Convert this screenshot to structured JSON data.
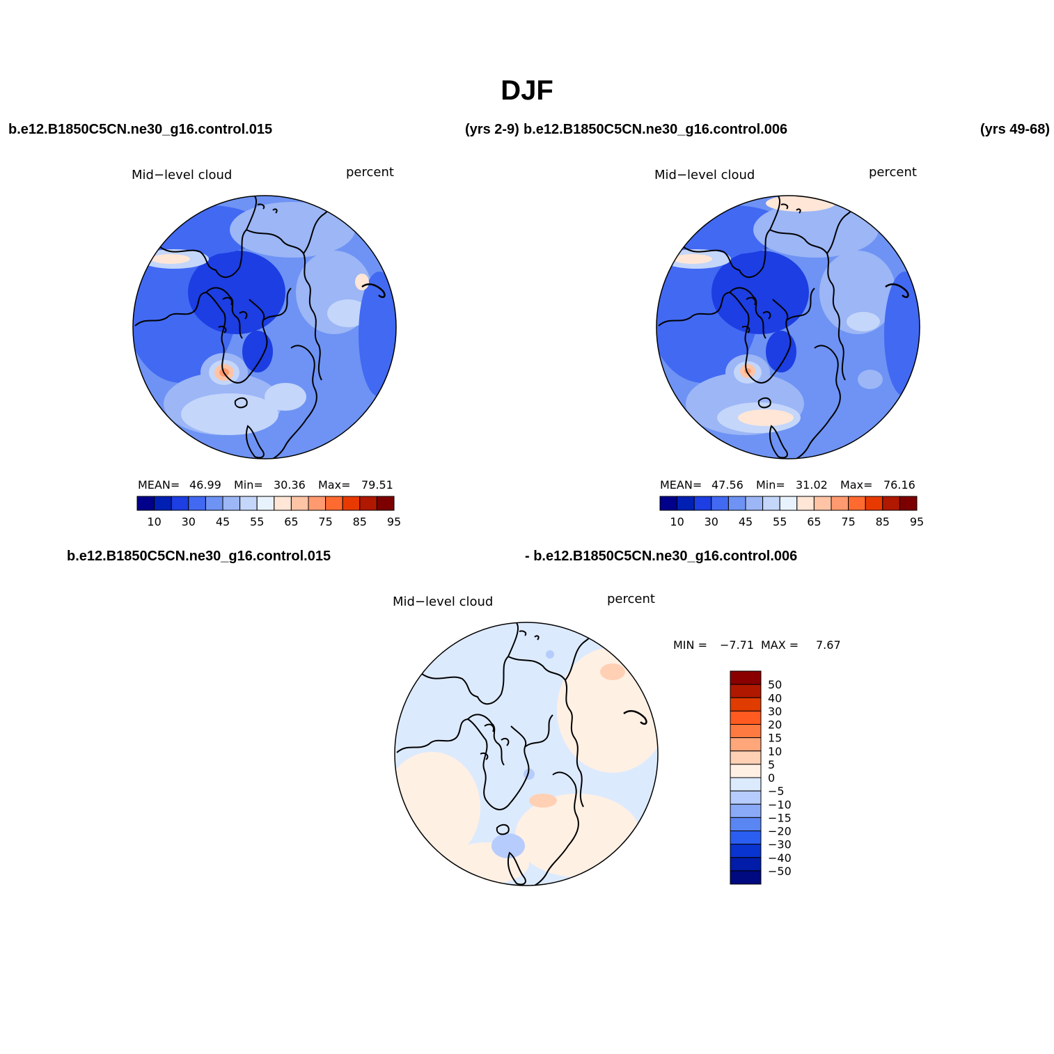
{
  "figure": {
    "title": "DJF",
    "case1_label": "b.e12.B1850C5CN.ne30_g16.control.015",
    "case1_years": "(yrs 2-9)",
    "case2_label": "b.e12.B1850C5CN.ne30_g16.control.006",
    "case2_years": "(yrs 49-68)",
    "diff_label_left": "b.e12.B1850C5CN.ne30_g16.control.015",
    "diff_label_right": "- b.e12.B1850C5CN.ne30_g16.control.006"
  },
  "panels": {
    "p1": {
      "variable": "Mid−level cloud",
      "units": "percent",
      "mean_label": "MEAN=",
      "mean": "46.99",
      "min_label": "Min=",
      "min": "30.36",
      "max_label": "Max=",
      "max": "79.51"
    },
    "p2": {
      "variable": "Mid−level cloud",
      "units": "percent",
      "mean_label": "MEAN=",
      "mean": "47.56",
      "min_label": "Min=",
      "min": "31.02",
      "max_label": "Max=",
      "max": "76.16"
    },
    "p3": {
      "variable": "Mid−level cloud",
      "units": "percent",
      "min_label": "MIN =",
      "min": "−7.71",
      "max_label": "MAX =",
      "max": "7.67"
    }
  },
  "chart_data": [
    {
      "type": "heatmap",
      "projection": "north-polar-stereographic",
      "title": "Mid-level cloud",
      "units": "percent",
      "case": "b.e12.B1850C5CN.ne30_g16.control.015",
      "years": "(yrs 2-9)",
      "mean": 46.99,
      "min": 30.36,
      "max": 79.51,
      "colorbar_ticks": [
        "10",
        "30",
        "45",
        "55",
        "65",
        "75",
        "85",
        "95"
      ],
      "colorbar_colors": [
        "#00008a",
        "#0020b4",
        "#1c3ee2",
        "#4269f2",
        "#6e93f4",
        "#9cb6f6",
        "#c4d6fa",
        "#e8f2fe",
        "#ffe6d6",
        "#ffc4a6",
        "#ff9a70",
        "#ff6a30",
        "#e83a00",
        "#b01800",
        "#7c0000"
      ]
    },
    {
      "type": "heatmap",
      "projection": "north-polar-stereographic",
      "title": "Mid-level cloud",
      "units": "percent",
      "case": "b.e12.B1850C5CN.ne30_g16.control.006",
      "years": "(yrs 49-68)",
      "mean": 47.56,
      "min": 31.02,
      "max": 76.16,
      "colorbar_ticks": [
        "10",
        "30",
        "45",
        "55",
        "65",
        "75",
        "85",
        "95"
      ],
      "colorbar_colors": [
        "#00008a",
        "#0020b4",
        "#1c3ee2",
        "#4269f2",
        "#6e93f4",
        "#9cb6f6",
        "#c4d6fa",
        "#e8f2fe",
        "#ffe6d6",
        "#ffc4a6",
        "#ff9a70",
        "#ff6a30",
        "#e83a00",
        "#b01800",
        "#7c0000"
      ]
    },
    {
      "type": "heatmap",
      "projection": "north-polar-stereographic",
      "title": "Mid-level cloud",
      "units": "percent",
      "case": "b.e12.B1850C5CN.ne30_g16.control.015 - b.e12.B1850C5CN.ne30_g16.control.006",
      "min": -7.71,
      "max": 7.67,
      "colorbar_ticks": [
        "50",
        "40",
        "30",
        "20",
        "15",
        "10",
        "5",
        "0",
        "−5",
        "−10",
        "−15",
        "−20",
        "−30",
        "−40",
        "−50"
      ],
      "colorbar_colors": [
        "#8a0000",
        "#b01800",
        "#e03c00",
        "#ff5a20",
        "#ff7a40",
        "#ffa67a",
        "#ffd0b4",
        "#fff0e4",
        "#dceafe",
        "#b6ccfc",
        "#8aaaf8",
        "#5a86f4",
        "#2a5ef0",
        "#0a34d0",
        "#001ca8",
        "#000a80"
      ]
    }
  ]
}
